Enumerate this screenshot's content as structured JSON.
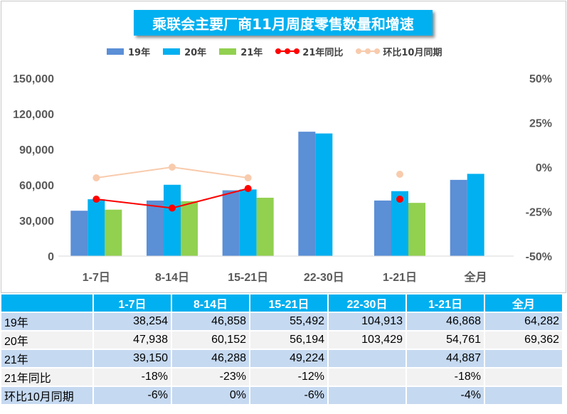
{
  "title": "乘联会主要厂商11月周度零售数量和增速",
  "legend": [
    {
      "label": "19年",
      "kind": "bar",
      "color": "#5b8fd6"
    },
    {
      "label": "20年",
      "kind": "bar",
      "color": "#00b0f0"
    },
    {
      "label": "21年",
      "kind": "bar",
      "color": "#92d050"
    },
    {
      "label": "21年同比",
      "kind": "line",
      "color": "#ff0000"
    },
    {
      "label": "环比10月同期",
      "kind": "line",
      "color": "#f8cbad"
    }
  ],
  "chart_data": {
    "type": "bar",
    "categories": [
      "1-7日",
      "8-14日",
      "15-21日",
      "22-30日",
      "1-21日",
      "全月"
    ],
    "series": [
      {
        "name": "19年",
        "type": "bar",
        "color": "#5b8fd6",
        "values": [
          38254,
          46858,
          55492,
          104913,
          46868,
          64282
        ]
      },
      {
        "name": "20年",
        "type": "bar",
        "color": "#00b0f0",
        "values": [
          47938,
          60152,
          56194,
          103429,
          54761,
          69362
        ]
      },
      {
        "name": "21年",
        "type": "bar",
        "color": "#92d050",
        "values": [
          39150,
          46288,
          49224,
          null,
          44887,
          null
        ]
      },
      {
        "name": "21年同比",
        "type": "line",
        "axis": "right",
        "color": "#ff0000",
        "values": [
          -0.18,
          -0.23,
          -0.12,
          null,
          -0.18,
          null
        ]
      },
      {
        "name": "环比10月同期",
        "type": "line",
        "axis": "right",
        "color": "#f8cbad",
        "values": [
          -0.06,
          0.0,
          -0.06,
          null,
          -0.04,
          null
        ]
      }
    ],
    "left_axis": {
      "min": 0,
      "max": 150000,
      "ticks": [
        "0",
        "30,000",
        "60,000",
        "90,000",
        "120,000",
        "150,000"
      ]
    },
    "right_axis": {
      "min": -0.5,
      "max": 0.5,
      "ticks": [
        "-50%",
        "-25%",
        "0%",
        "25%",
        "50%"
      ]
    },
    "grid": false,
    "legend_position": "top"
  },
  "table": {
    "headers": [
      "",
      "1-7日",
      "8-14日",
      "15-21日",
      "22-30日",
      "1-21日",
      "全月"
    ],
    "rows": [
      {
        "label": "19年",
        "cells": [
          "38,254",
          "46,858",
          "55,492",
          "104,913",
          "46,868",
          "64,282"
        ]
      },
      {
        "label": "20年",
        "cells": [
          "47,938",
          "60,152",
          "56,194",
          "103,429",
          "54,761",
          "69,362"
        ]
      },
      {
        "label": "21年",
        "cells": [
          "39,150",
          "46,288",
          "49,224",
          "",
          "44,887",
          ""
        ]
      },
      {
        "label": "21年同比",
        "cells": [
          "-18%",
          "-23%",
          "-12%",
          "",
          "-18%",
          ""
        ]
      },
      {
        "label": "环比10月同期",
        "cells": [
          "-6%",
          "0%",
          "-6%",
          "",
          "-4%",
          ""
        ]
      }
    ]
  }
}
